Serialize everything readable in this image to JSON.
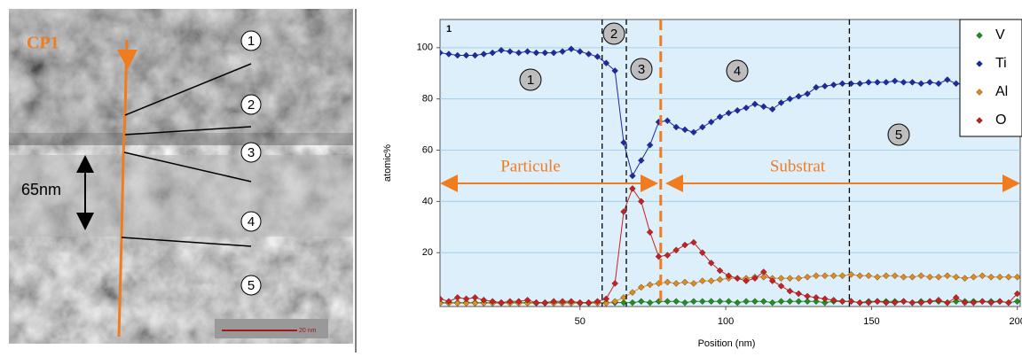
{
  "image": {
    "label": "CP1",
    "regions": [
      "1",
      "2",
      "3",
      "4",
      "5"
    ],
    "thickness": "65nm",
    "scale_bar": "20 nm"
  },
  "chart_data": {
    "type": "line",
    "panel_label": "1",
    "x_label": "Position (nm)",
    "y_label": "atomic%",
    "regions": [
      "Particule",
      "Substrat"
    ],
    "zones": [
      "1",
      "2",
      "3",
      "4",
      "5"
    ],
    "boundaries": [
      57.6,
      65.9,
      142.4
    ],
    "interface": 77.7,
    "x": [
      2,
      5,
      8,
      11,
      14,
      17,
      20,
      23,
      26,
      29,
      32,
      35,
      38,
      41,
      44,
      47,
      50,
      53,
      56,
      59,
      62,
      65,
      68,
      71,
      74,
      77,
      80,
      83,
      86,
      89,
      92,
      95,
      98,
      101,
      104,
      107,
      110,
      113,
      116,
      119,
      122,
      125,
      128,
      131,
      134,
      137,
      140,
      143,
      146,
      149,
      152,
      155,
      158,
      161,
      164,
      167,
      170,
      173,
      176,
      179,
      182,
      185,
      188,
      191,
      194,
      197,
      200
    ],
    "series": [
      {
        "name": "V",
        "color": "#1f8f1f",
        "values": [
          0.5,
          0.5,
          0.5,
          0.5,
          0.5,
          0.5,
          0.5,
          0.5,
          0.5,
          0.5,
          0.5,
          0.5,
          0.5,
          0.5,
          0.5,
          0.5,
          0.5,
          0.5,
          0.5,
          0.5,
          0.5,
          0.5,
          0.5,
          1,
          0.5,
          1,
          1,
          1,
          0.5,
          1,
          1,
          1,
          1,
          1,
          0.5,
          1,
          1,
          1,
          0.5,
          1,
          1,
          1,
          1,
          1,
          0.5,
          1,
          1,
          1,
          0.5,
          1,
          1,
          1,
          1,
          1,
          0.5,
          1,
          1,
          1,
          0.5,
          1,
          1,
          1,
          1,
          1,
          1,
          0.5,
          1
        ]
      },
      {
        "name": "Ti",
        "color": "#1a2aa8",
        "values": [
          98,
          97.5,
          97,
          97,
          97,
          97.5,
          98,
          99,
          98.5,
          98,
          98.5,
          98,
          98,
          98,
          98.5,
          99.5,
          98.5,
          97.5,
          96.5,
          94,
          91,
          63,
          50,
          56,
          62,
          71,
          71.5,
          69,
          68,
          67,
          69,
          71,
          73,
          74.5,
          75.5,
          76.5,
          78,
          77,
          76,
          78.5,
          80,
          81,
          82,
          84.5,
          85,
          85.5,
          86,
          86,
          86,
          86.5,
          86.5,
          86.5,
          87,
          86.5,
          86.5,
          86,
          86.5,
          86,
          87.5,
          86,
          85.5,
          85,
          85,
          84.5,
          84.5,
          84,
          84
        ]
      },
      {
        "name": "Al",
        "color": "#e38a1c",
        "values": [
          0.3,
          0.3,
          0.3,
          0.3,
          0.3,
          0.3,
          0.3,
          0.3,
          0.3,
          0.3,
          0.3,
          0.3,
          0.3,
          0.3,
          0.3,
          0.3,
          0.3,
          0.3,
          0.3,
          0.3,
          1,
          2.5,
          4.5,
          6.5,
          7.5,
          8,
          8.5,
          8,
          8.5,
          8,
          9,
          9,
          9.5,
          10,
          10,
          10,
          10.5,
          10.5,
          10,
          10,
          10,
          10,
          10.5,
          11,
          11,
          11,
          11,
          11.5,
          11,
          11,
          10.5,
          11,
          11,
          10.5,
          10.5,
          11,
          10.5,
          10.5,
          11,
          10.5,
          10,
          10.5,
          11,
          10.5,
          10.5,
          10.5,
          10.5
        ]
      },
      {
        "name": "O",
        "color": "#cc1f1f",
        "values": [
          2,
          1,
          2.5,
          2,
          2.5,
          1.5,
          1,
          0.5,
          1,
          1,
          1.5,
          0.5,
          0.5,
          1,
          1,
          1,
          0.5,
          0.5,
          1,
          2,
          8,
          36,
          45,
          40,
          28,
          18.5,
          19,
          21,
          23,
          24,
          20,
          16,
          13,
          11,
          10,
          9,
          10,
          12.5,
          9,
          7,
          5,
          4,
          3,
          2.5,
          2,
          1.5,
          1,
          1,
          0.5,
          0.5,
          1,
          0.5,
          0.5,
          1,
          0.5,
          0.5,
          1,
          1.5,
          0.5,
          2.5,
          0.5,
          0.5,
          1,
          0.5,
          1,
          0.5,
          4
        ]
      }
    ],
    "xlim": [
      2,
      201
    ],
    "ylim": [
      -1,
      111
    ],
    "xticks": [
      50,
      100,
      150,
      200
    ],
    "yticks": [
      20,
      40,
      60,
      80,
      100
    ],
    "grid": true,
    "legend": "top-right"
  }
}
